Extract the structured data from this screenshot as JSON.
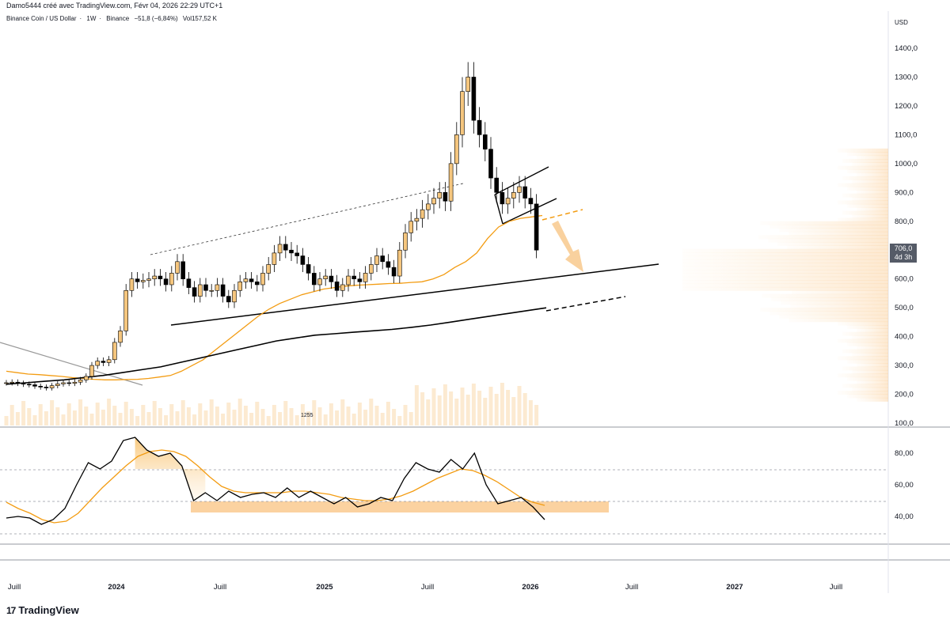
{
  "header": {
    "text": "Damo5444 créé avec TradingView.com, Févr 04, 2026 22:29 UTC+1"
  },
  "legend": {
    "symbol": "Binance Coin / US Dollar",
    "interval": "1W",
    "exchange": "Binance",
    "change": "−51,8 (−6,84%)",
    "volume": "Vol157,52 K"
  },
  "currency": "USD",
  "last_price": {
    "value": "706,0",
    "countdown": "4d 3h"
  },
  "volume_label": "1255",
  "brand": "TradingView",
  "colors": {
    "candle": "#f5c67e",
    "candle_down": "#000000",
    "ma": "#f39c12",
    "rsi": "#000000",
    "rsi_ma": "#f39c12",
    "zone": "#fbd2a0"
  },
  "chart_data": [
    {
      "type": "candlestick",
      "title": "Binance Coin / US Dollar · 1W · Binance",
      "x_ticks": [
        "Juill",
        "2024",
        "Juill",
        "2025",
        "Juill",
        "2026",
        "Juill",
        "2027",
        "Juill"
      ],
      "y_ticks": [
        "100,0",
        "200,0",
        "300,0",
        "400,0",
        "500,0",
        "600,0",
        "700,0",
        "800,0",
        "900,0",
        "1000,0",
        "1100,0",
        "1200,0",
        "1300,0",
        "1400,0"
      ],
      "ylim": [
        100,
        1400
      ],
      "closes": [
        240,
        242,
        238,
        235,
        233,
        228,
        225,
        222,
        230,
        236,
        240,
        238,
        242,
        250,
        262,
        300,
        315,
        310,
        320,
        380,
        420,
        560,
        600,
        590,
        595,
        600,
        610,
        600,
        580,
        620,
        660,
        600,
        570,
        540,
        580,
        560,
        560,
        580,
        540,
        520,
        560,
        590,
        600,
        590,
        580,
        620,
        650,
        690,
        720,
        700,
        690,
        680,
        650,
        620,
        580,
        600,
        610,
        590,
        560,
        580,
        610,
        600,
        590,
        620,
        650,
        680,
        660,
        640,
        610,
        700,
        760,
        800,
        810,
        840,
        860,
        880,
        900,
        870,
        1000,
        1100,
        1250,
        1300,
        1150,
        1100,
        1050,
        950,
        900,
        860,
        880,
        900,
        920,
        880,
        860,
        700
      ],
      "series": [
        {
          "name": "MA",
          "values": [
            280,
            275,
            270,
            268,
            265,
            262,
            258,
            255,
            252,
            250,
            250,
            251,
            252,
            255,
            260,
            265,
            280,
            300,
            320,
            350,
            380,
            410,
            440,
            470,
            495,
            515,
            530,
            545,
            555,
            565,
            570,
            575,
            578,
            580,
            582,
            584,
            585,
            588,
            590,
            600,
            615,
            640,
            660,
            690,
            740,
            780,
            800,
            810,
            815,
            820
          ]
        },
        {
          "name": "MA long",
          "values": [
            235,
            240,
            245,
            250,
            258,
            265,
            275,
            285,
            295,
            310,
            325,
            340,
            355,
            370,
            385,
            395,
            405,
            410,
            415,
            420,
            425,
            432,
            440,
            450,
            460,
            470,
            480,
            490,
            500
          ]
        }
      ],
      "annotations": [
        "1255"
      ]
    },
    {
      "type": "line",
      "title": "RSI",
      "y_ticks": [
        "40,00",
        "60,00",
        "80,00"
      ],
      "ylim": [
        25,
        95
      ],
      "series": [
        {
          "name": "RSI",
          "values": [
            39,
            40,
            39,
            35,
            38,
            45,
            60,
            74,
            70,
            75,
            88,
            90,
            82,
            78,
            80,
            72,
            50,
            55,
            50,
            56,
            52,
            54,
            55,
            52,
            58,
            52,
            56,
            52,
            48,
            52,
            46,
            48,
            52,
            50,
            64,
            74,
            70,
            68,
            76,
            70,
            80,
            60,
            48,
            50,
            52,
            46,
            38
          ]
        },
        {
          "name": "RSI MA",
          "values": [
            49,
            45,
            42,
            38,
            36,
            37,
            42,
            50,
            58,
            65,
            72,
            78,
            81,
            82,
            81,
            78,
            72,
            65,
            59,
            56,
            55,
            55,
            55,
            55,
            56,
            56,
            55,
            54,
            52,
            51,
            50,
            50,
            51,
            53,
            56,
            60,
            64,
            67,
            70,
            69,
            66,
            62,
            57,
            52,
            49,
            47
          ]
        }
      ],
      "reference_lines": [
        70,
        50,
        30
      ]
    }
  ]
}
